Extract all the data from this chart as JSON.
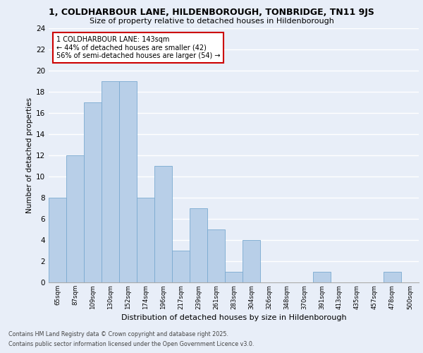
{
  "title_line1": "1, COLDHARBOUR LANE, HILDENBOROUGH, TONBRIDGE, TN11 9JS",
  "title_line2": "Size of property relative to detached houses in Hildenborough",
  "xlabel": "Distribution of detached houses by size in Hildenborough",
  "ylabel": "Number of detached properties",
  "categories": [
    "65sqm",
    "87sqm",
    "109sqm",
    "130sqm",
    "152sqm",
    "174sqm",
    "196sqm",
    "217sqm",
    "239sqm",
    "261sqm",
    "283sqm",
    "304sqm",
    "326sqm",
    "348sqm",
    "370sqm",
    "391sqm",
    "413sqm",
    "435sqm",
    "457sqm",
    "478sqm",
    "500sqm"
  ],
  "values": [
    8,
    12,
    17,
    19,
    19,
    8,
    11,
    3,
    7,
    5,
    1,
    4,
    0,
    0,
    0,
    1,
    0,
    0,
    0,
    1,
    0
  ],
  "bar_color": "#b8cfe8",
  "bar_edge_color": "#7aaad0",
  "annotation_box_color": "#ffffff",
  "annotation_border_color": "#cc0000",
  "annotation_line1": "1 COLDHARBOUR LANE: 143sqm",
  "annotation_line2": "← 44% of detached houses are smaller (42)",
  "annotation_line3": "56% of semi-detached houses are larger (54) →",
  "marker_bar_index": 3,
  "ylim": [
    0,
    24
  ],
  "yticks": [
    0,
    2,
    4,
    6,
    8,
    10,
    12,
    14,
    16,
    18,
    20,
    22,
    24
  ],
  "footer_line1": "Contains HM Land Registry data © Crown copyright and database right 2025.",
  "footer_line2": "Contains public sector information licensed under the Open Government Licence v3.0.",
  "bg_color": "#e8eef8",
  "fig_bg_color": "#e8eef8",
  "grid_color": "#ffffff"
}
